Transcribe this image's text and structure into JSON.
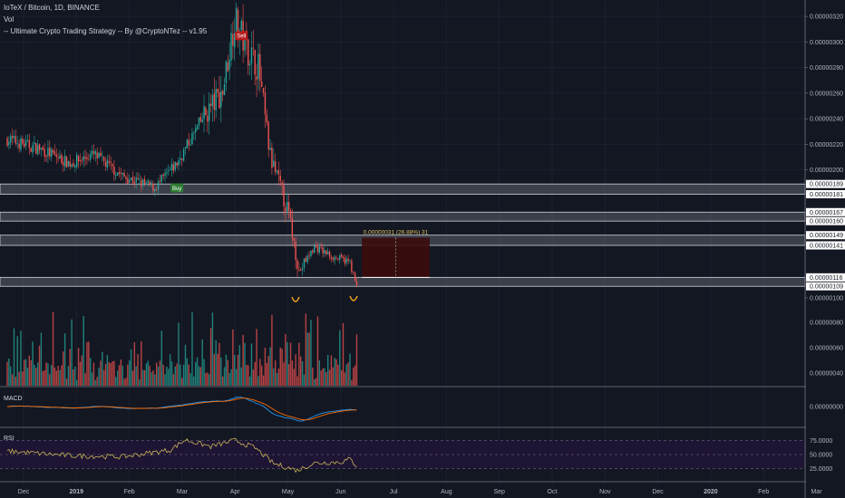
{
  "header": {
    "symbol_line": "IoTeX / Bitcoin, 1D, BINANCE",
    "vol_label": "Vol",
    "strategy_line": "-- Ultimate Crypto Trading Strategy -- By @CryptoNTez -- v1.95"
  },
  "colors": {
    "background": "#131722",
    "up": "#26a69a",
    "down": "#ef5350",
    "zone_fill": "#5d606b",
    "zone_border": "#d1d4dc",
    "measure_fill": "#3b0b0b",
    "rsi_band": "#1e1433",
    "rsi_line": "#c9b458",
    "macd_line": "#2196f3",
    "signal_line": "#ff6d00",
    "curve": "#f0a020"
  },
  "signals": {
    "buy_label": "Buy",
    "sell_label": "Sell"
  },
  "measure": {
    "label": "0.00000031 (26.88%) 31"
  },
  "price_axis": {
    "ticks": [
      "0.00000320",
      "0.00000300",
      "0.00000280",
      "0.00000260",
      "0.00000240",
      "0.00000220",
      "0.00000200",
      "0.00000100"
    ],
    "zone_labels": [
      "0.00000189",
      "0.00000181",
      "0.00000167",
      "0.00000160",
      "0.00000149",
      "0.00000141",
      "0.00000116",
      "0.00000109"
    ]
  },
  "volume_axis": {
    "ticks": [
      "0.00000080",
      "0.00000060",
      "0.00000040"
    ]
  },
  "macd_pane": {
    "label": "MACD",
    "tick": "0.00000000"
  },
  "rsi_pane": {
    "label": "RSI",
    "ticks": [
      "75.0000",
      "50.0000",
      "25.0000"
    ]
  },
  "time_axis": {
    "labels": [
      "Dec",
      "2019",
      "Feb",
      "Mar",
      "Apr",
      "May",
      "Jun",
      "Jul",
      "Aug",
      "Sep",
      "Oct",
      "Nov",
      "Dec",
      "2020",
      "Feb",
      "Mar"
    ]
  },
  "chart_data": {
    "type": "candlestick",
    "title": "IoTeX / Bitcoin, 1D, BINANCE",
    "x_range": [
      "2018-11-25",
      "2020-03-05"
    ],
    "price_range": [
      9.5e-07,
      3.3e-06
    ],
    "anchors": [
      {
        "date": "2018-11-25",
        "price": 2.24e-06
      },
      {
        "date": "2018-12-15",
        "price": 2.16e-06
      },
      {
        "date": "2019-01-01",
        "price": 2.05e-06
      },
      {
        "date": "2019-01-15",
        "price": 2.12e-06
      },
      {
        "date": "2019-02-01",
        "price": 1.95e-06
      },
      {
        "date": "2019-02-20",
        "price": 1.86e-06
      },
      {
        "date": "2019-03-05",
        "price": 2.05e-06
      },
      {
        "date": "2019-03-20",
        "price": 2.4e-06
      },
      {
        "date": "2019-04-01",
        "price": 2.62e-06
      },
      {
        "date": "2019-04-08",
        "price": 3.18e-06
      },
      {
        "date": "2019-04-15",
        "price": 2.96e-06
      },
      {
        "date": "2019-04-22",
        "price": 2.8e-06
      },
      {
        "date": "2019-04-29",
        "price": 2.1e-06
      },
      {
        "date": "2019-05-10",
        "price": 1.65e-06
      },
      {
        "date": "2019-05-16",
        "price": 1.2e-06
      },
      {
        "date": "2019-05-25",
        "price": 1.4e-06
      },
      {
        "date": "2019-06-05",
        "price": 1.32e-06
      },
      {
        "date": "2019-06-15",
        "price": 1.28e-06
      },
      {
        "date": "2019-06-19",
        "price": 1.08e-06
      }
    ],
    "support_resistance_zones": [
      {
        "top": 1.89e-06,
        "bottom": 1.81e-06
      },
      {
        "top": 1.67e-06,
        "bottom": 1.6e-06
      },
      {
        "top": 1.49e-06,
        "bottom": 1.41e-06
      },
      {
        "top": 1.16e-06,
        "bottom": 1.09e-06
      }
    ],
    "measure_box": {
      "start": "2019-06-22",
      "end": "2019-08-01",
      "top": 1.47e-06,
      "bottom": 1.16e-06
    },
    "signals": [
      {
        "type": "Buy",
        "date": "2019-03-05",
        "price": 1.86e-06
      },
      {
        "type": "Sell",
        "date": "2019-04-12",
        "price": 3.05e-06
      }
    ],
    "rsi_levels": [
      75,
      50,
      25
    ],
    "rsi_anchors": [
      {
        "date": "2018-11-25",
        "value": 56
      },
      {
        "date": "2019-01-01",
        "value": 48
      },
      {
        "date": "2019-02-01",
        "value": 46
      },
      {
        "date": "2019-03-01",
        "value": 58
      },
      {
        "date": "2019-03-10",
        "value": 76
      },
      {
        "date": "2019-03-25",
        "value": 64
      },
      {
        "date": "2019-04-08",
        "value": 75
      },
      {
        "date": "2019-04-20",
        "value": 62
      },
      {
        "date": "2019-05-01",
        "value": 34
      },
      {
        "date": "2019-05-15",
        "value": 22
      },
      {
        "date": "2019-05-25",
        "value": 35
      },
      {
        "date": "2019-06-10",
        "value": 37
      },
      {
        "date": "2019-06-15",
        "value": 42
      },
      {
        "date": "2019-06-19",
        "value": 30
      }
    ]
  }
}
